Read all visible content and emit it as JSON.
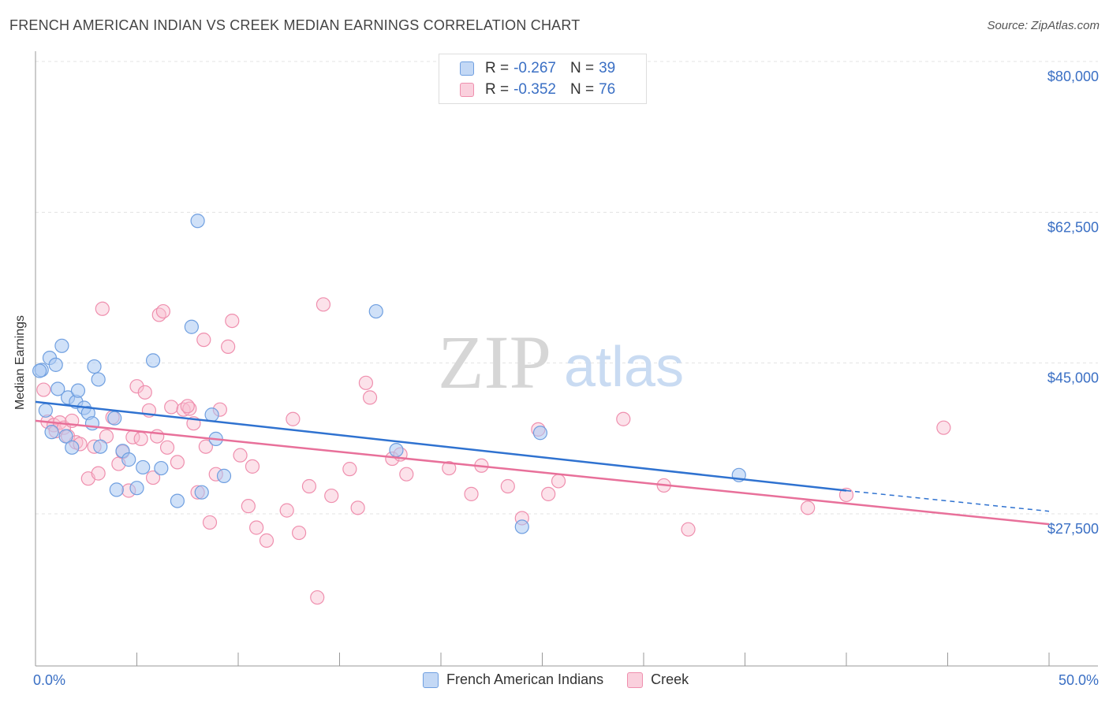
{
  "header": {
    "title": "FRENCH AMERICAN INDIAN VS CREEK MEDIAN EARNINGS CORRELATION CHART",
    "source": "Source: ZipAtlas.com"
  },
  "watermark": {
    "zip": "ZIP",
    "atlas": "atlas"
  },
  "colors": {
    "blue_fill": "#a9c8f2",
    "blue_stroke": "#6f9fe0",
    "blue_line": "#2f72d0",
    "pink_fill": "#f8bfd0",
    "pink_stroke": "#ef8fae",
    "pink_line": "#e8709a",
    "axis_text": "#3a6fc4",
    "grid": "#e3e3e3"
  },
  "legend": {
    "rows": [
      {
        "series": "blue",
        "r_label": "R =",
        "r_value": "-0.267",
        "n_label": "N =",
        "n_value": "39"
      },
      {
        "series": "pink",
        "r_label": "R =",
        "r_value": "-0.352",
        "n_label": "N =",
        "n_value": "76"
      }
    ],
    "bottom": [
      "French American Indians",
      "Creek"
    ]
  },
  "chart_data": {
    "type": "scatter",
    "title": "FRENCH AMERICAN INDIAN VS CREEK MEDIAN EARNINGS CORRELATION CHART",
    "xlabel": "",
    "ylabel": "Median Earnings",
    "xlim": [
      0,
      50
    ],
    "ylim": [
      8000,
      82000
    ],
    "x_tick_labels": [
      "0.0%",
      "50.0%"
    ],
    "y_ticks": [
      {
        "value": 27500,
        "label": "$27,500"
      },
      {
        "value": 45000,
        "label": "$45,000"
      },
      {
        "value": 62500,
        "label": "$62,500"
      },
      {
        "value": 80000,
        "label": "$80,000"
      }
    ],
    "x_minor_ticks": [
      0,
      5,
      10,
      15,
      20,
      25,
      30,
      35,
      40,
      45,
      50
    ],
    "series": [
      {
        "name": "French American Indians",
        "color": "blue",
        "trend": {
          "x0": 0,
          "y0": 40500,
          "x1": 40,
          "y1": 30200,
          "dash_to_x": 50,
          "dash_to_y": 27800
        },
        "points": [
          [
            0.3,
            44200
          ],
          [
            0.5,
            39500
          ],
          [
            0.7,
            45600
          ],
          [
            0.8,
            37000
          ],
          [
            1.0,
            44800
          ],
          [
            1.1,
            42000
          ],
          [
            1.3,
            47000
          ],
          [
            1.5,
            36500
          ],
          [
            1.6,
            41000
          ],
          [
            1.8,
            35200
          ],
          [
            2.0,
            40500
          ],
          [
            2.1,
            41800
          ],
          [
            2.4,
            39800
          ],
          [
            2.6,
            39200
          ],
          [
            2.8,
            38000
          ],
          [
            2.9,
            44600
          ],
          [
            3.1,
            43100
          ],
          [
            3.2,
            35300
          ],
          [
            3.9,
            38600
          ],
          [
            4.0,
            30300
          ],
          [
            4.3,
            34800
          ],
          [
            4.6,
            33800
          ],
          [
            5.0,
            30500
          ],
          [
            5.3,
            32900
          ],
          [
            5.8,
            45300
          ],
          [
            6.2,
            32800
          ],
          [
            7.0,
            29000
          ],
          [
            7.7,
            49200
          ],
          [
            8.0,
            61500
          ],
          [
            8.2,
            30000
          ],
          [
            8.7,
            39000
          ],
          [
            8.9,
            36200
          ],
          [
            9.3,
            31900
          ],
          [
            16.8,
            51000
          ],
          [
            17.8,
            34900
          ],
          [
            24.0,
            26000
          ],
          [
            24.9,
            36900
          ],
          [
            34.7,
            32000
          ],
          [
            0.2,
            44100
          ]
        ]
      },
      {
        "name": "Creek",
        "color": "pink",
        "trend": {
          "x0": 0,
          "y0": 38300,
          "x1": 50,
          "y1": 26300
        },
        "points": [
          [
            0.4,
            41900
          ],
          [
            0.6,
            38200
          ],
          [
            0.9,
            37800
          ],
          [
            1.0,
            37100
          ],
          [
            1.2,
            38100
          ],
          [
            1.4,
            37500
          ],
          [
            1.6,
            36500
          ],
          [
            1.8,
            38300
          ],
          [
            2.0,
            35800
          ],
          [
            2.2,
            35600
          ],
          [
            2.6,
            31600
          ],
          [
            2.9,
            35300
          ],
          [
            3.1,
            32200
          ],
          [
            3.3,
            51300
          ],
          [
            3.5,
            36500
          ],
          [
            3.8,
            38700
          ],
          [
            4.1,
            33300
          ],
          [
            4.3,
            34700
          ],
          [
            4.6,
            30200
          ],
          [
            4.8,
            36400
          ],
          [
            5.0,
            42300
          ],
          [
            5.2,
            36200
          ],
          [
            5.4,
            41600
          ],
          [
            5.6,
            39500
          ],
          [
            5.8,
            31700
          ],
          [
            6.0,
            36500
          ],
          [
            6.1,
            50600
          ],
          [
            6.3,
            51000
          ],
          [
            6.5,
            35200
          ],
          [
            6.7,
            39900
          ],
          [
            7.0,
            33500
          ],
          [
            7.3,
            39600
          ],
          [
            7.6,
            39700
          ],
          [
            7.8,
            38000
          ],
          [
            8.0,
            30000
          ],
          [
            8.3,
            47700
          ],
          [
            8.4,
            35300
          ],
          [
            8.6,
            26500
          ],
          [
            8.9,
            32100
          ],
          [
            9.1,
            39600
          ],
          [
            9.5,
            46900
          ],
          [
            9.7,
            49900
          ],
          [
            10.1,
            34300
          ],
          [
            10.5,
            28400
          ],
          [
            10.7,
            33000
          ],
          [
            10.9,
            25900
          ],
          [
            11.4,
            24400
          ],
          [
            12.4,
            27900
          ],
          [
            12.7,
            38500
          ],
          [
            13.0,
            25300
          ],
          [
            13.5,
            30700
          ],
          [
            13.9,
            17800
          ],
          [
            14.2,
            51800
          ],
          [
            14.6,
            29600
          ],
          [
            15.5,
            32700
          ],
          [
            15.9,
            28200
          ],
          [
            16.3,
            42700
          ],
          [
            16.5,
            41000
          ],
          [
            17.6,
            33900
          ],
          [
            18.0,
            34400
          ],
          [
            18.3,
            32100
          ],
          [
            20.4,
            32800
          ],
          [
            21.5,
            29800
          ],
          [
            22.0,
            33100
          ],
          [
            23.3,
            30700
          ],
          [
            24.0,
            27000
          ],
          [
            24.8,
            37300
          ],
          [
            25.3,
            29800
          ],
          [
            25.8,
            31300
          ],
          [
            29.0,
            38500
          ],
          [
            31.0,
            30800
          ],
          [
            32.2,
            25700
          ],
          [
            38.1,
            28200
          ],
          [
            40.0,
            29700
          ],
          [
            44.8,
            37500
          ],
          [
            7.5,
            40000
          ]
        ]
      }
    ]
  }
}
